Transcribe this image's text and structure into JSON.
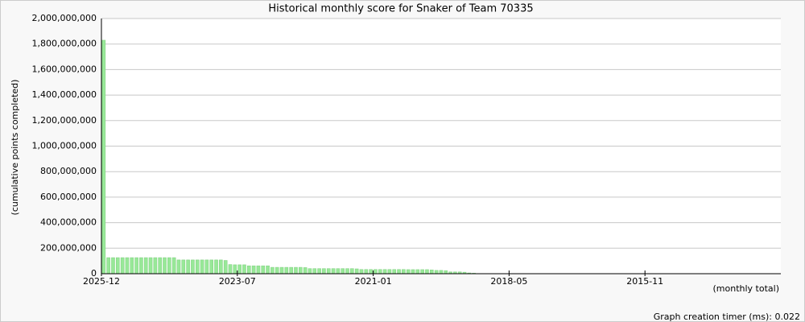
{
  "chart_data": {
    "type": "bar",
    "title": "Historical monthly score for Snaker of Team 70335",
    "y_label": "(cumulative points completed)",
    "x_label": "(monthly total)",
    "footer": "Graph creation timer (ms): 0.022",
    "color": "#98e898",
    "grid": true,
    "xlim": [
      0,
      145
    ],
    "xticks": [
      {
        "value": 0,
        "label": "2025-12"
      },
      {
        "value": 29,
        "label": "2023-07"
      },
      {
        "value": 58,
        "label": "2021-01"
      },
      {
        "value": 87,
        "label": "2018-05"
      },
      {
        "value": 116,
        "label": "2015-11"
      }
    ],
    "ylim": [
      0,
      2000000000
    ],
    "yticks": [
      0,
      {
        "value": 200000000,
        "label": "200,000,000"
      },
      {
        "value": 400000000,
        "label": "400,000,000"
      },
      {
        "value": 600000000,
        "label": "600,000,000"
      },
      {
        "value": 800000000,
        "label": "800,000,000"
      },
      {
        "value": 1000000000,
        "label": "1,000,000,000"
      },
      {
        "value": 1200000000,
        "label": "1,200,000,000"
      },
      {
        "value": 1400000000,
        "label": "1,400,000,000"
      },
      {
        "value": 1600000000,
        "label": "1,600,000,000"
      },
      {
        "value": 1800000000,
        "label": "1,800,000,000"
      },
      {
        "value": 2000000000,
        "label": "2,000,000,000"
      }
    ],
    "x": [
      0,
      1,
      2,
      3,
      4,
      5,
      6,
      7,
      8,
      9,
      10,
      11,
      12,
      13,
      14,
      15,
      16,
      17,
      18,
      19,
      20,
      21,
      22,
      23,
      24,
      25,
      26,
      27,
      28,
      29,
      30,
      31,
      32,
      33,
      34,
      35,
      36,
      37,
      38,
      39,
      40,
      41,
      42,
      43,
      44,
      45,
      46,
      47,
      48,
      49,
      50,
      51,
      52,
      53,
      54,
      55,
      56,
      57,
      58,
      59,
      60,
      61,
      62,
      63,
      64,
      65,
      66,
      67,
      68,
      69,
      70,
      71,
      72,
      73,
      74,
      75,
      76,
      77,
      78,
      79
    ],
    "values": [
      1830000000,
      126000000,
      126000000,
      126000000,
      126000000,
      126000000,
      126000000,
      126000000,
      126000000,
      126000000,
      126000000,
      126000000,
      126000000,
      126000000,
      126000000,
      126000000,
      108000000,
      108000000,
      108000000,
      108000000,
      108000000,
      108000000,
      108000000,
      108000000,
      108000000,
      108000000,
      104000000,
      72000000,
      70000000,
      70000000,
      70000000,
      62000000,
      62000000,
      62000000,
      62000000,
      62000000,
      50000000,
      50000000,
      50000000,
      50000000,
      50000000,
      50000000,
      50000000,
      48000000,
      40000000,
      40000000,
      40000000,
      40000000,
      40000000,
      40000000,
      40000000,
      40000000,
      40000000,
      40000000,
      38000000,
      33000000,
      33000000,
      33000000,
      33000000,
      33000000,
      33000000,
      33000000,
      33000000,
      33000000,
      33000000,
      32000000,
      32000000,
      32000000,
      32000000,
      32000000,
      30000000,
      26000000,
      26000000,
      24000000,
      14000000,
      14000000,
      14000000,
      12000000,
      6000000,
      4000000
    ]
  }
}
